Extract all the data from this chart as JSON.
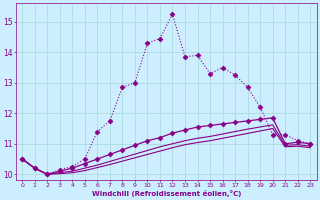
{
  "xlabel": "Windchill (Refroidissement éolien,°C)",
  "bg_color": "#cceeff",
  "grid_color": "#aadddd",
  "line_color": "#880088",
  "xlim": [
    -0.5,
    23.5
  ],
  "ylim": [
    9.8,
    15.6
  ],
  "yticks": [
    10,
    11,
    12,
    13,
    14,
    15
  ],
  "xticks": [
    0,
    1,
    2,
    3,
    4,
    5,
    6,
    7,
    8,
    9,
    10,
    11,
    12,
    13,
    14,
    15,
    16,
    17,
    18,
    19,
    20,
    21,
    22,
    23
  ],
  "series": [
    {
      "x": [
        0,
        1,
        2,
        3,
        4,
        5,
        6,
        7,
        8,
        9,
        10,
        11,
        12,
        13,
        14,
        15,
        16,
        17,
        18,
        19,
        20,
        21,
        22,
        23
      ],
      "y": [
        10.5,
        10.2,
        10.0,
        10.15,
        10.25,
        10.5,
        11.4,
        11.75,
        12.85,
        13.0,
        14.3,
        14.45,
        15.25,
        13.85,
        13.9,
        13.3,
        13.5,
        13.25,
        12.85,
        12.2,
        11.3,
        11.3,
        11.1,
        11.0
      ],
      "linestyle": "dotted",
      "marker": "D",
      "markersize": 2.5,
      "linewidth": 0.8
    },
    {
      "x": [
        0,
        1,
        2,
        3,
        4,
        5,
        6,
        7,
        8,
        9,
        10,
        11,
        12,
        13,
        14,
        15,
        16,
        17,
        18,
        19,
        20,
        21,
        22,
        23
      ],
      "y": [
        10.5,
        10.2,
        10.0,
        10.1,
        10.2,
        10.35,
        10.5,
        10.65,
        10.8,
        10.95,
        11.1,
        11.2,
        11.35,
        11.45,
        11.55,
        11.6,
        11.65,
        11.7,
        11.75,
        11.8,
        11.85,
        11.0,
        11.05,
        11.0
      ],
      "linestyle": "solid",
      "marker": "D",
      "markersize": 2.5,
      "linewidth": 0.9
    },
    {
      "x": [
        0,
        1,
        2,
        3,
        4,
        5,
        6,
        7,
        8,
        9,
        10,
        11,
        12,
        13,
        14,
        15,
        16,
        17,
        18,
        19,
        20,
        21,
        22,
        23
      ],
      "y": [
        10.5,
        10.2,
        10.0,
        10.05,
        10.1,
        10.2,
        10.3,
        10.42,
        10.54,
        10.66,
        10.78,
        10.9,
        11.0,
        11.1,
        11.18,
        11.24,
        11.32,
        11.4,
        11.48,
        11.55,
        11.62,
        10.95,
        10.97,
        10.92
      ],
      "linestyle": "solid",
      "marker": null,
      "markersize": 0,
      "linewidth": 0.8
    },
    {
      "x": [
        0,
        1,
        2,
        3,
        4,
        5,
        6,
        7,
        8,
        9,
        10,
        11,
        12,
        13,
        14,
        15,
        16,
        17,
        18,
        19,
        20,
        21,
        22,
        23
      ],
      "y": [
        10.5,
        10.2,
        10.0,
        10.02,
        10.05,
        10.12,
        10.22,
        10.32,
        10.43,
        10.54,
        10.65,
        10.76,
        10.87,
        10.97,
        11.04,
        11.1,
        11.18,
        11.26,
        11.34,
        11.42,
        11.5,
        10.9,
        10.92,
        10.87
      ],
      "linestyle": "solid",
      "marker": null,
      "markersize": 0,
      "linewidth": 0.8
    }
  ]
}
